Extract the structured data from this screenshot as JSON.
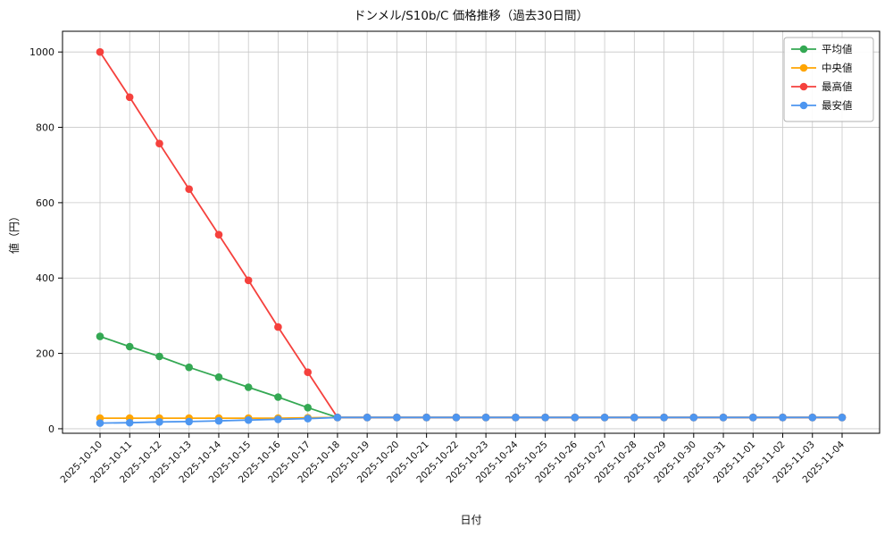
{
  "figure": {
    "title": "ドンメル/S10b/C 価格推移（過去30日間）",
    "xlabel": "日付",
    "ylabel": "値（円）"
  },
  "chart_data": {
    "type": "line",
    "title": "ドンメル/S10b/C 価格推移（過去30日間）",
    "xlabel": "日付",
    "ylabel": "値（円）",
    "ylim": [
      -12,
      1055
    ],
    "yticks": [
      0,
      200,
      400,
      600,
      800,
      1000
    ],
    "grid": true,
    "legend_position": "top-right",
    "background": "#ffffff",
    "grid_color": "#c8c8c8",
    "axis_color": "#000000",
    "categories": [
      "2025-10-10",
      "2025-10-11",
      "2025-10-12",
      "2025-10-13",
      "2025-10-14",
      "2025-10-15",
      "2025-10-16",
      "2025-10-17",
      "2025-10-18",
      "2025-10-19",
      "2025-10-20",
      "2025-10-21",
      "2025-10-22",
      "2025-10-23",
      "2025-10-24",
      "2025-10-25",
      "2025-10-26",
      "2025-10-27",
      "2025-10-28",
      "2025-10-29",
      "2025-10-30",
      "2025-10-31",
      "2025-11-01",
      "2025-11-02",
      "2025-11-03",
      "2025-11-04"
    ],
    "series": [
      {
        "name": "平均値",
        "color": "#34a853",
        "values": [
          245,
          218,
          192,
          163,
          137,
          110,
          84,
          56,
          30,
          30,
          30,
          30,
          30,
          30,
          30,
          30,
          30,
          30,
          30,
          30,
          30,
          30,
          30,
          30,
          30,
          30
        ]
      },
      {
        "name": "中央値",
        "color": "#ffa502",
        "values": [
          28,
          28,
          28,
          28,
          28,
          28,
          28,
          29,
          30,
          30,
          30,
          30,
          30,
          30,
          30,
          30,
          30,
          30,
          30,
          30,
          30,
          30,
          30,
          30,
          30,
          30
        ]
      },
      {
        "name": "最高値",
        "color": "#f5413d",
        "values": [
          1000,
          880,
          757,
          636,
          515,
          394,
          270,
          150,
          30,
          30,
          30,
          30,
          30,
          30,
          30,
          30,
          30,
          30,
          30,
          30,
          30,
          30,
          30,
          30,
          30,
          30
        ]
      },
      {
        "name": "最安値",
        "color": "#4d96f0",
        "values": [
          15,
          16,
          18,
          19,
          21,
          23,
          25,
          27,
          30,
          30,
          30,
          30,
          30,
          30,
          30,
          30,
          30,
          30,
          30,
          30,
          30,
          30,
          30,
          30,
          30,
          30
        ]
      }
    ]
  }
}
